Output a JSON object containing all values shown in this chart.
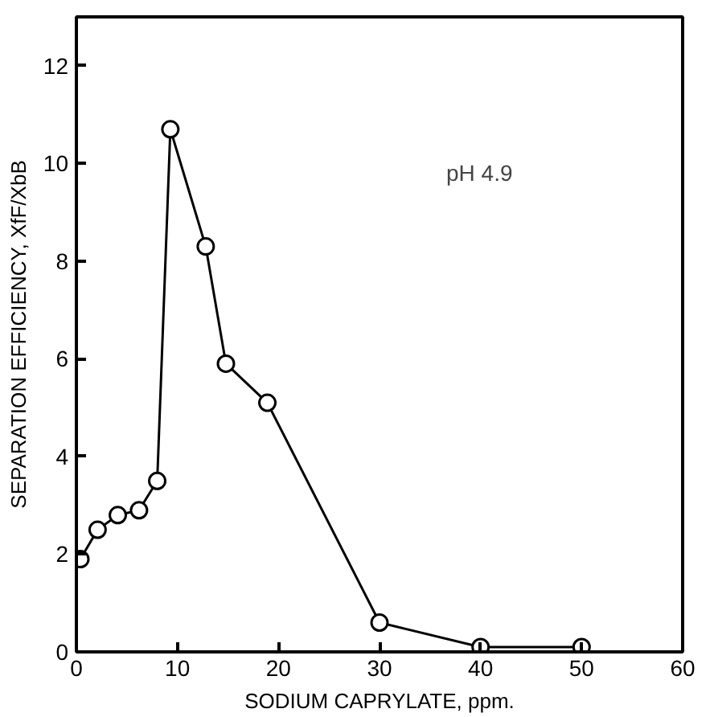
{
  "chart_data": {
    "type": "line",
    "xlabel": "SODIUM CAPRYLATE, ppm.",
    "ylabel": "SEPARATION EFFICIENCY, XfF/XbB",
    "x": [
      0.4,
      2.1,
      4.1,
      6.2,
      8.0,
      9.3,
      12.8,
      14.8,
      18.9,
      30,
      40,
      50
    ],
    "series": [
      {
        "color": "#000000",
        "values": [
          1.9,
          2.5,
          2.8,
          2.9,
          3.5,
          10.7,
          8.3,
          5.9,
          5.1,
          0.6,
          0.1,
          0.1
        ]
      }
    ],
    "xlim": [
      0,
      60
    ],
    "ylim": [
      0,
      13
    ],
    "xticks": [
      0,
      10,
      20,
      30,
      40,
      50,
      60
    ],
    "yticks": [
      0,
      2,
      4,
      6,
      8,
      10,
      12
    ],
    "annotations": [
      "pH 4.9"
    ],
    "grid": false,
    "marker": "circle",
    "line_style": "solid"
  }
}
